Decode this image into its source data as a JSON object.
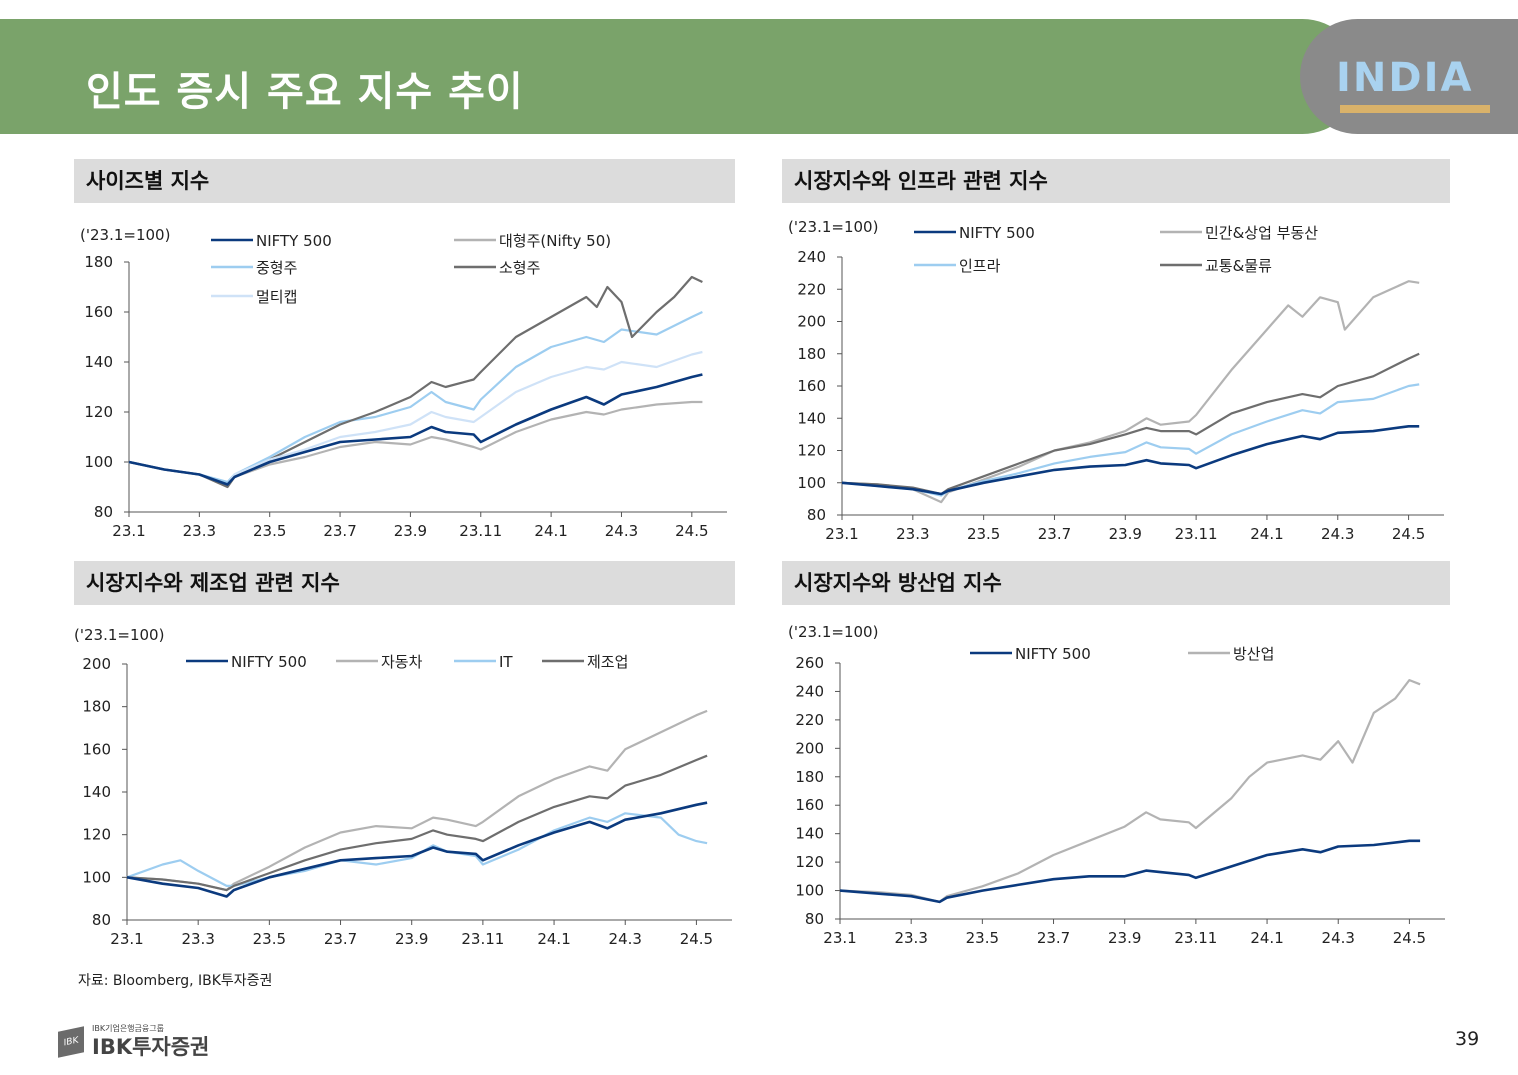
{
  "page": {
    "title": "인도 증시 주요 지수 추이",
    "logo_text": "INDIA",
    "source": "자료: Bloomberg, IBK투자증권",
    "brand_small": "IBK기업은행금융그룹",
    "brand": "IBK투자증권",
    "brand_mark": "IBK",
    "page_number": "39"
  },
  "colors": {
    "header_green": "#7aa36a",
    "header_grey": "#8a8a8a",
    "navy": "#0b3a7e",
    "light_grey": "#b3b3b3",
    "light_blue": "#9dcdf0",
    "dark_grey": "#6e6e6e",
    "pale_blue": "#cfe2f7"
  },
  "panels": [
    {
      "title": "사이즈별 지수"
    },
    {
      "title": "시장지수와 인프라 관련 지수"
    },
    {
      "title": "시장지수와 제조업 관련 지수"
    },
    {
      "title": "시장지수와 방산업 지수"
    }
  ],
  "chart_data": [
    {
      "type": "line",
      "title": "사이즈별 지수",
      "unit": "('23.1=100)",
      "ylim": [
        80,
        180
      ],
      "yticks": [
        "80",
        "100",
        "120",
        "140",
        "160",
        "180"
      ],
      "x_labels": [
        "23.1",
        "23.3",
        "23.5",
        "23.7",
        "23.9",
        "23.11",
        "24.1",
        "24.3",
        "24.5"
      ],
      "x_positions": [
        0,
        2,
        4,
        6,
        8,
        10,
        12,
        14,
        16
      ],
      "series": [
        {
          "name": "NIFTY 500",
          "color": "#0b3a7e",
          "x": [
            0,
            1,
            2,
            2.8,
            3,
            4,
            5,
            6,
            7,
            8,
            8.6,
            9,
            9.8,
            10,
            11,
            12,
            13,
            13.5,
            14,
            15,
            16,
            16.3
          ],
          "y": [
            100,
            97,
            95,
            91,
            94,
            100,
            104,
            108,
            109,
            110,
            114,
            112,
            111,
            108,
            115,
            121,
            126,
            123,
            127,
            130,
            134,
            135
          ]
        },
        {
          "name": "대형주(Nifty 50)",
          "color": "#b3b3b3",
          "x": [
            0,
            1,
            2,
            2.8,
            3,
            4,
            5,
            6,
            7,
            8,
            8.6,
            9,
            9.8,
            10,
            11,
            12,
            13,
            13.5,
            14,
            15,
            16,
            16.3
          ],
          "y": [
            100,
            97,
            95,
            91,
            94,
            99,
            102,
            106,
            108,
            107,
            110,
            109,
            106,
            105,
            112,
            117,
            120,
            119,
            121,
            123,
            124,
            124
          ]
        },
        {
          "name": "중형주",
          "color": "#9dcdf0",
          "x": [
            0,
            1,
            2,
            2.8,
            3,
            4,
            5,
            6,
            7,
            8,
            8.6,
            9,
            9.8,
            10,
            11,
            12,
            13,
            13.5,
            14,
            15,
            16,
            16.3
          ],
          "y": [
            100,
            97,
            95,
            92,
            95,
            102,
            110,
            116,
            118,
            122,
            128,
            124,
            121,
            125,
            138,
            146,
            150,
            148,
            153,
            151,
            158,
            160
          ]
        },
        {
          "name": "소형주",
          "color": "#6e6e6e",
          "x": [
            0,
            1,
            2,
            2.8,
            3,
            4,
            5,
            6,
            7,
            8,
            8.6,
            9,
            9.8,
            10,
            11,
            12,
            13,
            13.3,
            13.6,
            14,
            14.3,
            15,
            15.5,
            16,
            16.3
          ],
          "y": [
            100,
            97,
            95,
            90,
            94,
            101,
            108,
            115,
            120,
            126,
            132,
            130,
            133,
            136,
            150,
            158,
            166,
            162,
            170,
            164,
            150,
            160,
            166,
            174,
            172
          ]
        },
        {
          "name": "멀티캡",
          "color": "#cfe2f7",
          "x": [
            0,
            1,
            2,
            2.8,
            3,
            4,
            5,
            6,
            7,
            8,
            8.6,
            9,
            9.8,
            10,
            11,
            12,
            13,
            13.5,
            14,
            15,
            16,
            16.3
          ],
          "y": [
            100,
            97,
            95,
            91,
            95,
            101,
            105,
            110,
            112,
            115,
            120,
            118,
            116,
            118,
            128,
            134,
            138,
            137,
            140,
            138,
            143,
            144
          ]
        }
      ]
    },
    {
      "type": "line",
      "title": "시장지수와 인프라 관련 지수",
      "unit": "('23.1=100)",
      "ylim": [
        80,
        240
      ],
      "yticks": [
        "80",
        "100",
        "120",
        "140",
        "160",
        "180",
        "200",
        "220",
        "240"
      ],
      "x_labels": [
        "23.1",
        "23.3",
        "23.5",
        "23.7",
        "23.9",
        "23.11",
        "24.1",
        "24.3",
        "24.5"
      ],
      "x_positions": [
        0,
        2,
        4,
        6,
        8,
        10,
        12,
        14,
        16
      ],
      "series": [
        {
          "name": "NIFTY 500",
          "color": "#0b3a7e",
          "x": [
            0,
            1,
            2,
            2.8,
            3,
            4,
            5,
            6,
            7,
            8,
            8.6,
            9,
            9.8,
            10,
            11,
            12,
            13,
            13.5,
            14,
            15,
            16,
            16.3
          ],
          "y": [
            100,
            98,
            96,
            93,
            95,
            100,
            104,
            108,
            110,
            111,
            114,
            112,
            111,
            109,
            117,
            124,
            129,
            127,
            131,
            132,
            135,
            135
          ]
        },
        {
          "name": "민간&상업 부동산",
          "color": "#b3b3b3",
          "x": [
            0,
            1,
            2,
            2.8,
            3,
            4,
            5,
            6,
            7,
            8,
            8.6,
            9,
            9.8,
            10,
            11,
            12,
            12.6,
            13,
            13.5,
            14,
            14.2,
            15,
            15.5,
            16,
            16.3
          ],
          "y": [
            100,
            99,
            96,
            88,
            94,
            102,
            110,
            120,
            125,
            132,
            140,
            136,
            138,
            142,
            170,
            195,
            210,
            203,
            215,
            212,
            195,
            215,
            220,
            225,
            224
          ]
        },
        {
          "name": "인프라",
          "color": "#9dcdf0",
          "x": [
            0,
            1,
            2,
            2.8,
            3,
            4,
            5,
            6,
            7,
            8,
            8.6,
            9,
            9.8,
            10,
            11,
            12,
            13,
            13.5,
            14,
            15,
            16,
            16.3
          ],
          "y": [
            100,
            98,
            96,
            92,
            95,
            101,
            106,
            112,
            116,
            119,
            125,
            122,
            121,
            118,
            130,
            138,
            145,
            143,
            150,
            152,
            160,
            161
          ]
        },
        {
          "name": "교통&물류",
          "color": "#6e6e6e",
          "x": [
            0,
            1,
            2,
            2.8,
            3,
            4,
            5,
            6,
            7,
            8,
            8.6,
            9,
            9.8,
            10,
            11,
            12,
            13,
            13.5,
            14,
            15,
            16,
            16.3
          ],
          "y": [
            100,
            99,
            97,
            93,
            96,
            104,
            112,
            120,
            124,
            130,
            134,
            132,
            132,
            130,
            143,
            150,
            155,
            153,
            160,
            166,
            177,
            180
          ]
        }
      ]
    },
    {
      "type": "line",
      "title": "시장지수와 제조업 관련 지수",
      "unit": "('23.1=100)",
      "ylim": [
        80,
        200
      ],
      "yticks": [
        "80",
        "100",
        "120",
        "140",
        "160",
        "180",
        "200"
      ],
      "x_labels": [
        "23.1",
        "23.3",
        "23.5",
        "23.7",
        "23.9",
        "23.11",
        "24.1",
        "24.3",
        "24.5"
      ],
      "x_positions": [
        0,
        2,
        4,
        6,
        8,
        10,
        12,
        14,
        16
      ],
      "series": [
        {
          "name": "NIFTY 500",
          "color": "#0b3a7e",
          "x": [
            0,
            1,
            2,
            2.8,
            3,
            4,
            5,
            6,
            7,
            8,
            8.6,
            9,
            9.8,
            10,
            11,
            12,
            13,
            13.5,
            14,
            15,
            16,
            16.3
          ],
          "y": [
            100,
            97,
            95,
            91,
            94,
            100,
            104,
            108,
            109,
            110,
            114,
            112,
            111,
            108,
            115,
            121,
            126,
            123,
            127,
            130,
            134,
            135
          ]
        },
        {
          "name": "자동차",
          "color": "#b3b3b3",
          "x": [
            0,
            1,
            2,
            2.8,
            3,
            4,
            5,
            6,
            7,
            8,
            8.6,
            9,
            9.8,
            10,
            11,
            12,
            13,
            13.5,
            14,
            15,
            16,
            16.3
          ],
          "y": [
            100,
            99,
            97,
            94,
            97,
            105,
            114,
            121,
            124,
            123,
            128,
            127,
            124,
            126,
            138,
            146,
            152,
            150,
            160,
            168,
            176,
            178
          ]
        },
        {
          "name": "IT",
          "color": "#9dcdf0",
          "x": [
            0,
            1,
            1.5,
            2,
            2.8,
            3,
            4,
            5,
            6,
            7,
            8,
            8.6,
            9,
            9.8,
            10,
            11,
            12,
            13,
            13.5,
            14,
            15,
            15.5,
            16,
            16.3
          ],
          "y": [
            100,
            106,
            108,
            103,
            96,
            96,
            100,
            103,
            108,
            106,
            109,
            115,
            112,
            110,
            106,
            113,
            122,
            128,
            126,
            130,
            128,
            120,
            117,
            116
          ]
        },
        {
          "name": "제조업",
          "color": "#6e6e6e",
          "x": [
            0,
            1,
            2,
            2.8,
            3,
            4,
            5,
            6,
            7,
            8,
            8.6,
            9,
            9.8,
            10,
            11,
            12,
            13,
            13.5,
            14,
            15,
            16,
            16.3
          ],
          "y": [
            100,
            99,
            97,
            94,
            96,
            102,
            108,
            113,
            116,
            118,
            122,
            120,
            118,
            117,
            126,
            133,
            138,
            137,
            143,
            148,
            155,
            157
          ]
        }
      ]
    },
    {
      "type": "line",
      "title": "시장지수와 방산업 지수",
      "unit": "('23.1=100)",
      "ylim": [
        80,
        260
      ],
      "yticks": [
        "80",
        "100",
        "120",
        "140",
        "160",
        "180",
        "200",
        "220",
        "240",
        "260"
      ],
      "x_labels": [
        "23.1",
        "23.3",
        "23.5",
        "23.7",
        "23.9",
        "23.11",
        "24.1",
        "24.3",
        "24.5"
      ],
      "x_positions": [
        0,
        2,
        4,
        6,
        8,
        10,
        12,
        14,
        16
      ],
      "series": [
        {
          "name": "NIFTY 500",
          "color": "#0b3a7e",
          "x": [
            0,
            1,
            2,
            2.8,
            3,
            4,
            5,
            6,
            7,
            8,
            8.6,
            9,
            9.8,
            10,
            11,
            12,
            13,
            13.5,
            14,
            15,
            16,
            16.3
          ],
          "y": [
            100,
            98,
            96,
            92,
            95,
            100,
            104,
            108,
            110,
            110,
            114,
            113,
            111,
            109,
            117,
            125,
            129,
            127,
            131,
            132,
            135,
            135
          ]
        },
        {
          "name": "방산업",
          "color": "#b3b3b3",
          "x": [
            0,
            1,
            2,
            2.8,
            3,
            4,
            5,
            6,
            7,
            8,
            8.6,
            9,
            9.8,
            10,
            11,
            11.5,
            12,
            13,
            13.5,
            14,
            14.4,
            15,
            15.3,
            15.6,
            16,
            16.3
          ],
          "y": [
            100,
            99,
            97,
            92,
            96,
            103,
            112,
            125,
            135,
            145,
            155,
            150,
            148,
            144,
            165,
            180,
            190,
            195,
            192,
            205,
            190,
            225,
            230,
            235,
            248,
            245
          ]
        }
      ]
    }
  ]
}
